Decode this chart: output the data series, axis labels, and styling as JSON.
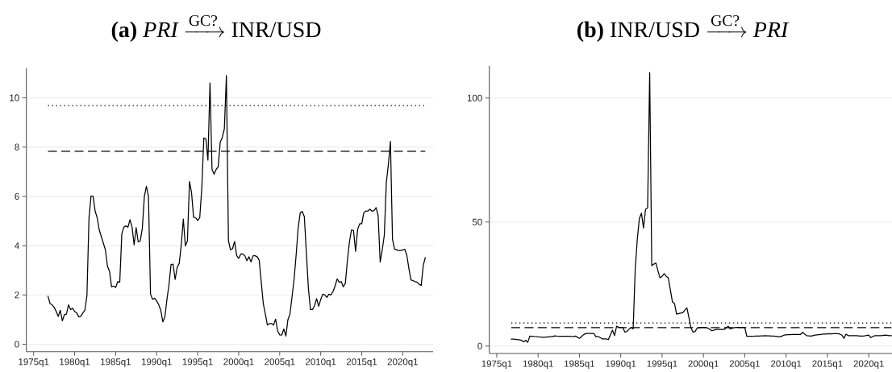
{
  "chart_data": [
    {
      "type": "line",
      "title": "\\textbf{(a)}\\ \\textit{PRI}\\xrightarrow{\\text{GC?}}\\text{INR/USD}",
      "categories": [
        "1975q1",
        null,
        null,
        null,
        null,
        null,
        null,
        null,
        null,
        null,
        null,
        null,
        null,
        null,
        null,
        null,
        null,
        null,
        null,
        null,
        "1980q1",
        null,
        null,
        null,
        null,
        null,
        null,
        null,
        null,
        null,
        null,
        null,
        null,
        null,
        null,
        null,
        null,
        null,
        null,
        null,
        "1985q1",
        null,
        null,
        null,
        null,
        null,
        null,
        null,
        null,
        null,
        null,
        null,
        null,
        null,
        null,
        null,
        null,
        null,
        null,
        null,
        "1990q1",
        null,
        null,
        null,
        null,
        null,
        null,
        null,
        null,
        null,
        null,
        null,
        null,
        null,
        null,
        null,
        null,
        null,
        null,
        null,
        "1995q1",
        null,
        null,
        null,
        null,
        null,
        null,
        null,
        null,
        null,
        null,
        null,
        null,
        null,
        null,
        null,
        null,
        null,
        null,
        null,
        "2000q1",
        null,
        null,
        null,
        null,
        null,
        null,
        null,
        null,
        null,
        null,
        null,
        null,
        null,
        null,
        null,
        null,
        null,
        null,
        null,
        "2005q1",
        null,
        null,
        null,
        null,
        null,
        null,
        null,
        null,
        null,
        null,
        null,
        null,
        null,
        null,
        null,
        null,
        null,
        null,
        null,
        "2010q1",
        null,
        null,
        null,
        null,
        null,
        null,
        null,
        null,
        null,
        null,
        null,
        null,
        null,
        null,
        null,
        null,
        null,
        null,
        null,
        "2015q1",
        null,
        null,
        null,
        null,
        null,
        null,
        null,
        null,
        null,
        null,
        null,
        null,
        null,
        null,
        null,
        null,
        null,
        null,
        null,
        "2020q1",
        null,
        null,
        null,
        null,
        null,
        null,
        null,
        null,
        null,
        null,
        null
      ],
      "series": [
        {
          "color": "#000000",
          "values": [
            null,
            null,
            null,
            null,
            null,
            null,
            null,
            1.95,
            1.65,
            1.6,
            1.5,
            1.33,
            1.13,
            1.38,
            0.95,
            1.2,
            1.22,
            1.6,
            1.41,
            1.46,
            1.33,
            1.27,
            1.11,
            1.13,
            1.27,
            1.38,
            1.98,
            5.13,
            6.02,
            6.0,
            5.4,
            5.13,
            4.64,
            4.37,
            4.1,
            3.83,
            3.17,
            2.96,
            2.33,
            2.36,
            2.3,
            2.54,
            2.52,
            4.48,
            4.75,
            4.8,
            4.75,
            5.05,
            4.75,
            4.04,
            4.73,
            4.15,
            4.2,
            4.7,
            6.0,
            6.41,
            6.0,
            2.03,
            1.82,
            1.87,
            1.76,
            1.6,
            1.38,
            0.91,
            1.11,
            1.82,
            2.41,
            3.23,
            3.25,
            2.63,
            3.12,
            3.28,
            4.04,
            5.08,
            3.99,
            4.2,
            6.6,
            6.16,
            5.15,
            5.13,
            5.02,
            5.13,
            6.33,
            8.37,
            8.34,
            7.47,
            10.6,
            7.09,
            6.9,
            7.09,
            7.2,
            8.2,
            8.39,
            8.74,
            10.9,
            4.2,
            3.83,
            3.88,
            4.17,
            3.6,
            3.48,
            3.66,
            3.66,
            3.59,
            3.39,
            3.55,
            3.34,
            3.59,
            3.59,
            3.55,
            3.41,
            2.52,
            1.65,
            1.22,
            0.78,
            0.84,
            0.84,
            0.78,
            1.02,
            0.54,
            0.38,
            0.37,
            0.62,
            0.33,
            1.0,
            1.22,
            1.92,
            2.63,
            3.61,
            4.72,
            5.33,
            5.39,
            5.18,
            3.72,
            2.25,
            1.41,
            1.41,
            1.57,
            1.85,
            1.54,
            1.82,
            2.03,
            2.0,
            1.9,
            2.03,
            2.0,
            2.14,
            2.36,
            2.65,
            2.52,
            2.54,
            2.33,
            2.47,
            3.39,
            4.15,
            4.64,
            4.61,
            3.77,
            4.66,
            4.89,
            4.89,
            5.33,
            5.4,
            5.4,
            5.48,
            5.4,
            5.42,
            5.54,
            5.22,
            3.34,
            3.83,
            4.42,
            6.57,
            7.3,
            8.23,
            4.26,
            3.86,
            3.83,
            3.8,
            3.8,
            3.83,
            3.85,
            3.61,
            3.07,
            2.61,
            2.58,
            2.54,
            2.52,
            2.43,
            2.39,
            3.2,
            3.52
          ]
        }
      ],
      "ylim": [
        -0.3,
        11.2
      ],
      "yticks": [
        0,
        2,
        4,
        6,
        8,
        10
      ],
      "grid": "y",
      "ref_lines": [
        {
          "axis": "y",
          "value": 9.68,
          "line_style": "dotted"
        },
        {
          "axis": "y",
          "value": 7.83,
          "line_style": "dashed"
        }
      ]
    },
    {
      "type": "line",
      "title": "\\textbf{(b)}\\ \\text{INR/USD}\\xrightarrow{\\text{GC?}}\\textit{PRI}",
      "categories": [
        "1975q1",
        null,
        null,
        null,
        null,
        null,
        null,
        null,
        null,
        null,
        null,
        null,
        null,
        null,
        null,
        null,
        null,
        null,
        null,
        null,
        "1980q1",
        null,
        null,
        null,
        null,
        null,
        null,
        null,
        null,
        null,
        null,
        null,
        null,
        null,
        null,
        null,
        null,
        null,
        null,
        null,
        "1985q1",
        null,
        null,
        null,
        null,
        null,
        null,
        null,
        null,
        null,
        null,
        null,
        null,
        null,
        null,
        null,
        null,
        null,
        null,
        null,
        "1990q1",
        null,
        null,
        null,
        null,
        null,
        null,
        null,
        null,
        null,
        null,
        null,
        null,
        null,
        null,
        null,
        null,
        null,
        null,
        null,
        "1995q1",
        null,
        null,
        null,
        null,
        null,
        null,
        null,
        null,
        null,
        null,
        null,
        null,
        null,
        null,
        null,
        null,
        null,
        null,
        null,
        "2000q1",
        null,
        null,
        null,
        null,
        null,
        null,
        null,
        null,
        null,
        null,
        null,
        null,
        null,
        null,
        null,
        null,
        null,
        null,
        null,
        "2005q1",
        null,
        null,
        null,
        null,
        null,
        null,
        null,
        null,
        null,
        null,
        null,
        null,
        null,
        null,
        null,
        null,
        null,
        null,
        null,
        "2010q1",
        null,
        null,
        null,
        null,
        null,
        null,
        null,
        null,
        null,
        null,
        null,
        null,
        null,
        null,
        null,
        null,
        null,
        null,
        null,
        "2015q1",
        null,
        null,
        null,
        null,
        null,
        null,
        null,
        null,
        null,
        null,
        null,
        null,
        null,
        null,
        null,
        null,
        null,
        null,
        null,
        "2020q1",
        null,
        null,
        null,
        null,
        null,
        null,
        null,
        null,
        null,
        null,
        null
      ],
      "series": [
        {
          "color": "#000000",
          "values": [
            null,
            null,
            null,
            null,
            null,
            null,
            null,
            2.8,
            2.8,
            2.7,
            2.6,
            2.5,
            2.3,
            1.7,
            2.3,
            1.5,
            4.0,
            3.9,
            3.9,
            3.8,
            3.7,
            3.6,
            3.5,
            3.5,
            3.6,
            3.7,
            3.8,
            3.8,
            4.1,
            4.0,
            3.9,
            3.9,
            3.9,
            3.9,
            3.9,
            3.9,
            3.9,
            3.8,
            4.0,
            3.6,
            3.1,
            3.8,
            4.6,
            5.0,
            5.1,
            5.1,
            5.1,
            5.1,
            3.7,
            3.9,
            3.4,
            2.9,
            2.9,
            2.9,
            2.6,
            4.5,
            6.4,
            4.2,
            8.0,
            7.6,
            7.5,
            7.5,
            5.6,
            5.9,
            6.8,
            7.5,
            6.9,
            31,
            43,
            51.4,
            53.6,
            47.6,
            55.2,
            55.7,
            110.3,
            32.4,
            33,
            33.5,
            30.3,
            27.5,
            28.1,
            29.2,
            28.1,
            27.5,
            22.7,
            17.8,
            17.2,
            12.9,
            13.1,
            13.3,
            13.4,
            14.5,
            15.4,
            11.4,
            7.3,
            5.6,
            5.9,
            7.3,
            7.4,
            7.5,
            7.5,
            7.5,
            7.3,
            6.8,
            6.2,
            6.4,
            6.7,
            6.7,
            6.7,
            6.7,
            6.7,
            7.3,
            8.0,
            6.9,
            7.2,
            7.4,
            7.5,
            7.5,
            7.5,
            7.5,
            7.5,
            3.9,
            3.9,
            3.9,
            3.9,
            4.0,
            4.0,
            4.0,
            4.1,
            4.1,
            4.2,
            4.1,
            4.1,
            4.0,
            4.0,
            3.9,
            3.8,
            3.7,
            4.0,
            4.4,
            4.5,
            4.6,
            4.6,
            4.7,
            4.7,
            4.7,
            4.7,
            4.7,
            5.5,
            4.8,
            4.2,
            4.1,
            4.0,
            4.2,
            4.4,
            4.5,
            4.6,
            4.7,
            4.8,
            4.8,
            4.9,
            4.9,
            4.9,
            5.0,
            5.0,
            5.0,
            4.8,
            4.4,
            3.1,
            4.8,
            4.2,
            4.2,
            4.2,
            4.2,
            4.2,
            4.1,
            4.0,
            4.0,
            4.1,
            4.3,
            4.4,
            3.4,
            3.9,
            4.2,
            4.2,
            4.2,
            4.2,
            4.3,
            4.4,
            4.3,
            4.2,
            4.2
          ]
        }
      ],
      "ylim": [
        -3,
        113
      ],
      "yticks": [
        0,
        50,
        100
      ],
      "grid": "y",
      "ref_lines": [
        {
          "axis": "y",
          "value": 9.3,
          "line_style": "dotted"
        },
        {
          "axis": "y",
          "value": 7.4,
          "line_style": "dashed"
        }
      ]
    }
  ]
}
